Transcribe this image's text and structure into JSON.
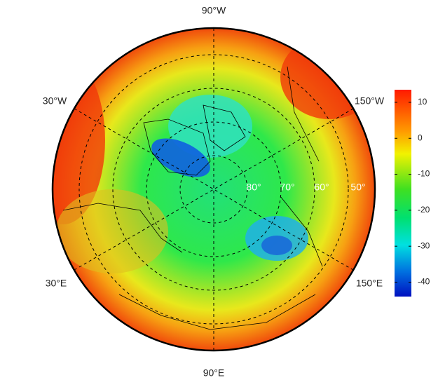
{
  "map": {
    "longitude_labels": [
      "90°W",
      "30°W",
      "150°W",
      "30°E",
      "150°E",
      "90°E"
    ],
    "latitude_labels": [
      "80°",
      "70°",
      "60°",
      "50°"
    ]
  },
  "chart_data": {
    "type": "colorbar",
    "clim": [
      -44,
      13.5
    ],
    "ticks": [
      10,
      0,
      -10,
      -20,
      -30,
      -40
    ]
  }
}
